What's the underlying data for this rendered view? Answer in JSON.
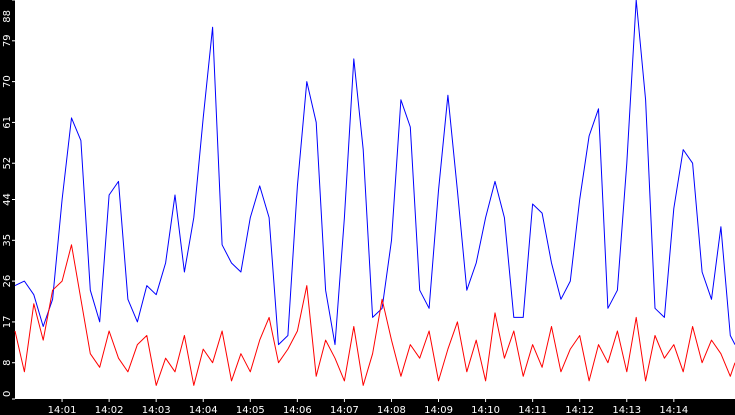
{
  "chart_data": {
    "type": "line",
    "title": "",
    "xlabel": "",
    "ylabel": "",
    "background": "#000000",
    "plot_background": "#ffffff",
    "grid": false,
    "legend": "none",
    "ylim": [
      0,
      88
    ],
    "xlim_minutes": [
      0,
      15.3
    ],
    "y_ticks": [
      "0",
      "8",
      "17",
      "26",
      "35",
      "44",
      "52",
      "61",
      "70",
      "79",
      "88"
    ],
    "x_ticks": [
      {
        "label": "14:01",
        "minute": 1
      },
      {
        "label": "14:02",
        "minute": 2
      },
      {
        "label": "14:03",
        "minute": 3
      },
      {
        "label": "14:04",
        "minute": 4
      },
      {
        "label": "14:05",
        "minute": 5
      },
      {
        "label": "14:06",
        "minute": 6
      },
      {
        "label": "14:07",
        "minute": 7
      },
      {
        "label": "14:08",
        "minute": 8
      },
      {
        "label": "14:09",
        "minute": 9
      },
      {
        "label": "14:10",
        "minute": 10
      },
      {
        "label": "14:11",
        "minute": 11
      },
      {
        "label": "14:12",
        "minute": 12
      },
      {
        "label": "14:13",
        "minute": 13
      },
      {
        "label": "14:14",
        "minute": 14
      }
    ],
    "series": [
      {
        "color": "#0000ff",
        "points": [
          [
            0.0,
            25
          ],
          [
            0.2,
            26
          ],
          [
            0.4,
            23
          ],
          [
            0.6,
            16
          ],
          [
            0.8,
            22
          ],
          [
            1.0,
            44
          ],
          [
            1.2,
            62
          ],
          [
            1.4,
            57
          ],
          [
            1.6,
            24
          ],
          [
            1.8,
            17
          ],
          [
            2.0,
            45
          ],
          [
            2.2,
            48
          ],
          [
            2.4,
            22
          ],
          [
            2.6,
            17
          ],
          [
            2.8,
            25
          ],
          [
            3.0,
            23
          ],
          [
            3.2,
            30
          ],
          [
            3.4,
            45
          ],
          [
            3.6,
            28
          ],
          [
            3.8,
            40
          ],
          [
            4.0,
            62
          ],
          [
            4.2,
            82
          ],
          [
            4.4,
            34
          ],
          [
            4.6,
            30
          ],
          [
            4.8,
            28
          ],
          [
            5.0,
            40
          ],
          [
            5.2,
            47
          ],
          [
            5.4,
            40
          ],
          [
            5.6,
            12
          ],
          [
            5.8,
            14
          ],
          [
            6.0,
            47
          ],
          [
            6.2,
            70
          ],
          [
            6.4,
            61
          ],
          [
            6.6,
            24
          ],
          [
            6.8,
            12
          ],
          [
            7.0,
            40
          ],
          [
            7.2,
            75
          ],
          [
            7.4,
            55
          ],
          [
            7.6,
            18
          ],
          [
            7.8,
            20
          ],
          [
            8.0,
            35
          ],
          [
            8.2,
            66
          ],
          [
            8.4,
            60
          ],
          [
            8.6,
            24
          ],
          [
            8.8,
            20
          ],
          [
            9.0,
            46
          ],
          [
            9.2,
            67
          ],
          [
            9.4,
            46
          ],
          [
            9.6,
            24
          ],
          [
            9.8,
            30
          ],
          [
            10.0,
            40
          ],
          [
            10.2,
            48
          ],
          [
            10.4,
            40
          ],
          [
            10.6,
            18
          ],
          [
            10.8,
            18
          ],
          [
            11.0,
            43
          ],
          [
            11.2,
            41
          ],
          [
            11.4,
            30
          ],
          [
            11.6,
            22
          ],
          [
            11.8,
            26
          ],
          [
            12.0,
            44
          ],
          [
            12.2,
            58
          ],
          [
            12.4,
            64
          ],
          [
            12.6,
            20
          ],
          [
            12.8,
            24
          ],
          [
            13.0,
            52
          ],
          [
            13.2,
            88
          ],
          [
            13.4,
            66
          ],
          [
            13.6,
            20
          ],
          [
            13.8,
            18
          ],
          [
            14.0,
            42
          ],
          [
            14.2,
            55
          ],
          [
            14.4,
            52
          ],
          [
            14.6,
            28
          ],
          [
            14.8,
            22
          ],
          [
            15.0,
            38
          ],
          [
            15.2,
            14
          ],
          [
            15.3,
            12
          ]
        ]
      },
      {
        "color": "#ff0000",
        "points": [
          [
            0.0,
            15
          ],
          [
            0.2,
            6
          ],
          [
            0.4,
            21
          ],
          [
            0.6,
            13
          ],
          [
            0.8,
            24
          ],
          [
            1.0,
            26
          ],
          [
            1.2,
            34
          ],
          [
            1.4,
            22
          ],
          [
            1.6,
            10
          ],
          [
            1.8,
            7
          ],
          [
            2.0,
            15
          ],
          [
            2.2,
            9
          ],
          [
            2.4,
            6
          ],
          [
            2.6,
            12
          ],
          [
            2.8,
            14
          ],
          [
            3.0,
            3
          ],
          [
            3.2,
            9
          ],
          [
            3.4,
            6
          ],
          [
            3.6,
            14
          ],
          [
            3.8,
            3
          ],
          [
            4.0,
            11
          ],
          [
            4.2,
            8
          ],
          [
            4.4,
            15
          ],
          [
            4.6,
            4
          ],
          [
            4.8,
            10
          ],
          [
            5.0,
            6
          ],
          [
            5.2,
            13
          ],
          [
            5.4,
            18
          ],
          [
            5.6,
            8
          ],
          [
            5.8,
            11
          ],
          [
            6.0,
            15
          ],
          [
            6.2,
            25
          ],
          [
            6.4,
            5
          ],
          [
            6.6,
            13
          ],
          [
            6.8,
            9
          ],
          [
            7.0,
            4
          ],
          [
            7.2,
            16
          ],
          [
            7.4,
            3
          ],
          [
            7.6,
            10
          ],
          [
            7.8,
            22
          ],
          [
            8.0,
            13
          ],
          [
            8.2,
            5
          ],
          [
            8.4,
            12
          ],
          [
            8.6,
            9
          ],
          [
            8.8,
            15
          ],
          [
            9.0,
            4
          ],
          [
            9.2,
            11
          ],
          [
            9.4,
            17
          ],
          [
            9.6,
            6
          ],
          [
            9.8,
            13
          ],
          [
            10.0,
            4
          ],
          [
            10.2,
            19
          ],
          [
            10.4,
            9
          ],
          [
            10.6,
            15
          ],
          [
            10.8,
            5
          ],
          [
            11.0,
            12
          ],
          [
            11.2,
            7
          ],
          [
            11.4,
            16
          ],
          [
            11.6,
            6
          ],
          [
            11.8,
            11
          ],
          [
            12.0,
            14
          ],
          [
            12.2,
            4
          ],
          [
            12.4,
            12
          ],
          [
            12.6,
            8
          ],
          [
            12.8,
            15
          ],
          [
            13.0,
            6
          ],
          [
            13.2,
            18
          ],
          [
            13.4,
            4
          ],
          [
            13.6,
            14
          ],
          [
            13.8,
            9
          ],
          [
            14.0,
            12
          ],
          [
            14.2,
            6
          ],
          [
            14.4,
            16
          ],
          [
            14.6,
            8
          ],
          [
            14.8,
            13
          ],
          [
            15.0,
            10
          ],
          [
            15.2,
            5
          ],
          [
            15.3,
            8
          ]
        ]
      }
    ]
  }
}
